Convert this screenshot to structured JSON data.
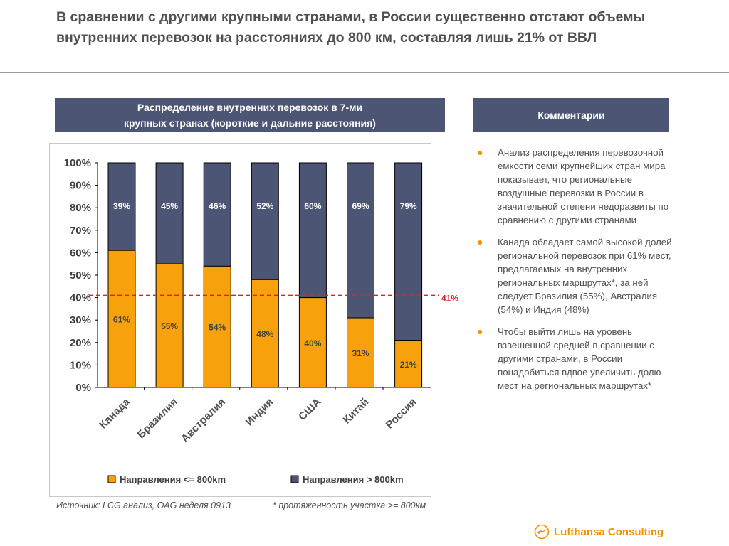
{
  "title": "В сравнении с другими крупными странами, в России существенно отстают объемы внутренних перевозок на расстояниях до 800 км, составляя лишь 21% от ВВЛ",
  "left_header": {
    "line1": "Распределение внутренних перевозок в 7-ми",
    "line2": "крупных странах (короткие и дальние расстояния)"
  },
  "right_header": "Комментарии",
  "comments": [
    "Анализ распределения перевозочной емкости семи крупнейших стран мира показывает, что региональные воздушные перевозки в России в значительной степени недоразвиты по сравнению с другими странами",
    "Канада обладает самой высокой долей региональной перевозок при 61% мест, предлагаемых на внутренних региональных маршрутах*, за ней следует Бразилия (55%), Австралия (54%) и Индия (48%)",
    "Чтобы выйти лишь на уровень взвешенной средней в сравнении с другими странами, в России понадобиться вдвое увеличить долю мест на региональных маршрутах*"
  ],
  "source": "Источник: LCG анализ, OAG неделя 0913",
  "footnote": "* протяженность участка >= 800км",
  "logo_text": "Lufthansa Consulting",
  "colors": {
    "short": "#f7a20c",
    "long": "#4d5574",
    "header": "#4d5574",
    "reference": "#d9232d",
    "accent": "#f39200"
  },
  "chart_data": {
    "type": "bar",
    "stacked": true,
    "categories": [
      "Канада",
      "Бразилия",
      "Австралия",
      "Индия",
      "США",
      "Китай",
      "Россия"
    ],
    "series": [
      {
        "name": "Направления <= 800km",
        "values": [
          61,
          55,
          54,
          48,
          40,
          31,
          21
        ]
      },
      {
        "name": "Направления > 800km",
        "values": [
          39,
          45,
          46,
          52,
          60,
          69,
          79
        ]
      }
    ],
    "ylim": [
      0,
      100
    ],
    "yticks": [
      "0%",
      "10%",
      "20%",
      "30%",
      "40%",
      "50%",
      "60%",
      "70%",
      "80%",
      "90%",
      "100%"
    ],
    "reference_line": {
      "value": 41,
      "label": "41%"
    },
    "legend_position": "bottom",
    "grid": false
  }
}
